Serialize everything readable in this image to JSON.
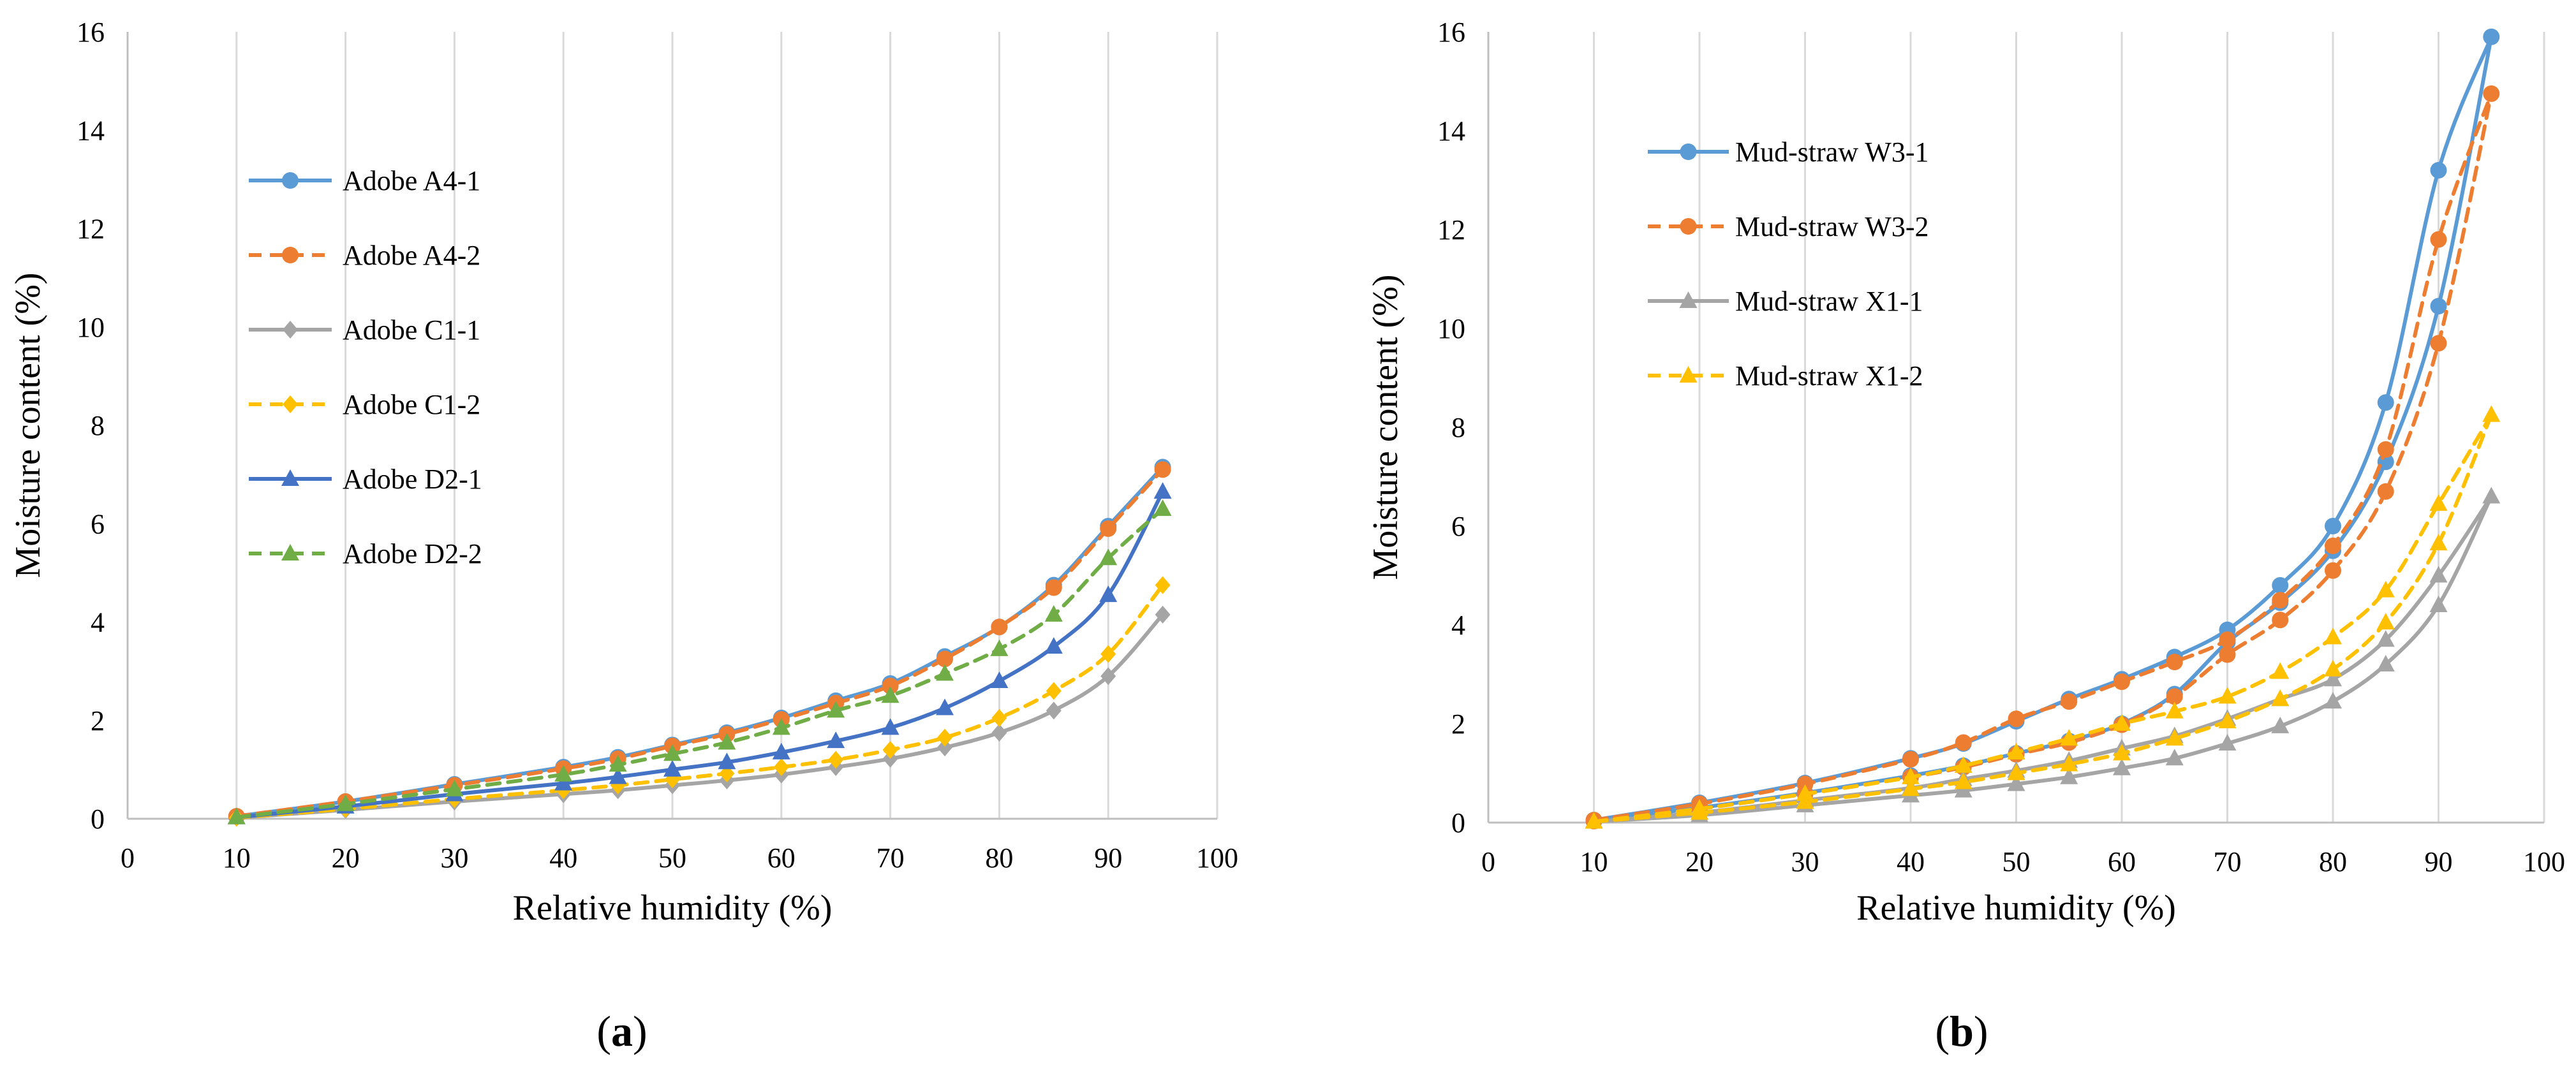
{
  "panels": [
    {
      "caption_open": "(",
      "caption_letter": "a",
      "caption_close": ")"
    },
    {
      "caption_open": "(",
      "caption_letter": "b",
      "caption_close": ")"
    }
  ],
  "chart_data": [
    {
      "type": "line",
      "xlabel": "Relative humidity (%)",
      "ylabel": "Moisture content (%)",
      "xlim": [
        0,
        100
      ],
      "ylim": [
        0,
        16
      ],
      "x_ticks": [
        "0",
        "10",
        "20",
        "30",
        "40",
        "50",
        "60",
        "70",
        "80",
        "90",
        "100"
      ],
      "y_ticks": [
        "0",
        "2",
        "4",
        "6",
        "8",
        "10",
        "12",
        "14",
        "16"
      ],
      "grid": "vertical",
      "legend_position": "upper-left",
      "x": [
        10,
        20,
        30,
        40,
        45,
        50,
        55,
        60,
        65,
        70,
        75,
        80,
        85,
        90,
        95
      ],
      "series": [
        {
          "name": "Adobe A4-1",
          "color": "#5B9BD5",
          "dash": "solid",
          "marker": "circle",
          "values": [
            0.05,
            0.35,
            0.7,
            1.05,
            1.25,
            1.5,
            1.75,
            2.05,
            2.4,
            2.75,
            3.3,
            3.9,
            4.75,
            5.95,
            7.15
          ]
        },
        {
          "name": "Adobe A4-2",
          "color": "#ED7D31",
          "dash": "dashed",
          "marker": "circle",
          "values": [
            0.05,
            0.35,
            0.68,
            1.02,
            1.22,
            1.48,
            1.72,
            2.02,
            2.35,
            2.7,
            3.25,
            3.9,
            4.7,
            5.9,
            7.1
          ]
        },
        {
          "name": "Adobe C1-1",
          "color": "#A5A5A5",
          "dash": "solid",
          "marker": "diamond",
          "values": [
            0.02,
            0.18,
            0.35,
            0.5,
            0.58,
            0.68,
            0.78,
            0.9,
            1.05,
            1.22,
            1.45,
            1.75,
            2.2,
            2.9,
            4.15
          ]
        },
        {
          "name": "Adobe C1-2",
          "color": "#FFC000",
          "dash": "dashed",
          "marker": "diamond",
          "values": [
            0.02,
            0.2,
            0.4,
            0.58,
            0.68,
            0.8,
            0.92,
            1.05,
            1.2,
            1.4,
            1.65,
            2.05,
            2.6,
            3.35,
            4.75
          ]
        },
        {
          "name": "Adobe D2-1",
          "color": "#4472C4",
          "dash": "solid",
          "marker": "triangle",
          "values": [
            0.03,
            0.25,
            0.5,
            0.72,
            0.85,
            1.0,
            1.15,
            1.35,
            1.58,
            1.85,
            2.25,
            2.8,
            3.5,
            4.55,
            6.65
          ]
        },
        {
          "name": "Adobe D2-2",
          "color": "#70AD47",
          "dash": "dashed",
          "marker": "triangle",
          "values": [
            0.03,
            0.3,
            0.6,
            0.9,
            1.1,
            1.32,
            1.55,
            1.85,
            2.2,
            2.5,
            2.95,
            3.45,
            4.15,
            5.3,
            6.3
          ]
        }
      ]
    },
    {
      "type": "line",
      "xlabel": "Relative humidity (%)",
      "ylabel": "Moisture content (%)",
      "xlim": [
        0,
        100
      ],
      "ylim": [
        0,
        16
      ],
      "x_ticks": [
        "0",
        "10",
        "20",
        "30",
        "40",
        "50",
        "60",
        "70",
        "80",
        "90",
        "100"
      ],
      "y_ticks": [
        "0",
        "2",
        "4",
        "6",
        "8",
        "10",
        "12",
        "14",
        "16"
      ],
      "grid": "vertical",
      "legend_position": "upper-left",
      "x": [
        10,
        20,
        30,
        40,
        45,
        50,
        55,
        60,
        65,
        70,
        75,
        80,
        85,
        90,
        95
      ],
      "series": [
        {
          "name": "Mud-straw W3-1",
          "color": "#5B9BD5",
          "dash": "solid",
          "marker": "circle",
          "values": [
            0.05,
            0.4,
            0.8,
            1.3,
            1.6,
            2.05,
            2.5,
            2.9,
            3.35,
            3.9,
            4.8,
            6.0,
            8.5,
            13.2,
            15.9
          ],
          "values_alt": [
            0.03,
            0.3,
            0.6,
            0.95,
            1.15,
            1.4,
            1.65,
            2.0,
            2.6,
            3.65,
            4.45,
            5.5,
            7.3,
            10.45,
            15.9
          ]
        },
        {
          "name": "Mud-straw W3-2",
          "color": "#ED7D31",
          "dash": "dashed",
          "marker": "circle",
          "values": [
            0.05,
            0.38,
            0.78,
            1.28,
            1.62,
            2.1,
            2.45,
            2.85,
            3.25,
            3.7,
            4.5,
            5.6,
            7.55,
            11.8,
            14.75
          ],
          "values_alt": [
            0.03,
            0.28,
            0.58,
            0.92,
            1.12,
            1.38,
            1.62,
            1.98,
            2.55,
            3.4,
            4.1,
            5.1,
            6.7,
            9.7,
            14.75
          ]
        },
        {
          "name": "Mud-straw X1-1",
          "color": "#A5A5A5",
          "dash": "solid",
          "marker": "triangle",
          "values": [
            0.02,
            0.2,
            0.45,
            0.7,
            0.88,
            1.05,
            1.25,
            1.5,
            1.75,
            2.1,
            2.5,
            2.9,
            3.7,
            5.0,
            6.6
          ],
          "values_alt": [
            0.02,
            0.15,
            0.35,
            0.55,
            0.65,
            0.78,
            0.92,
            1.1,
            1.3,
            1.6,
            1.95,
            2.45,
            3.2,
            4.4,
            6.6
          ]
        },
        {
          "name": "Mud-straw X1-2",
          "color": "#FFC000",
          "dash": "dashed",
          "marker": "triangle",
          "values": [
            0.02,
            0.28,
            0.58,
            0.92,
            1.15,
            1.42,
            1.7,
            2.0,
            2.25,
            2.55,
            3.05,
            3.75,
            4.7,
            6.45,
            8.25
          ],
          "values_alt": [
            0.02,
            0.2,
            0.42,
            0.68,
            0.82,
            1.0,
            1.18,
            1.4,
            1.7,
            2.05,
            2.5,
            3.1,
            4.05,
            5.65,
            8.25
          ]
        }
      ]
    }
  ]
}
